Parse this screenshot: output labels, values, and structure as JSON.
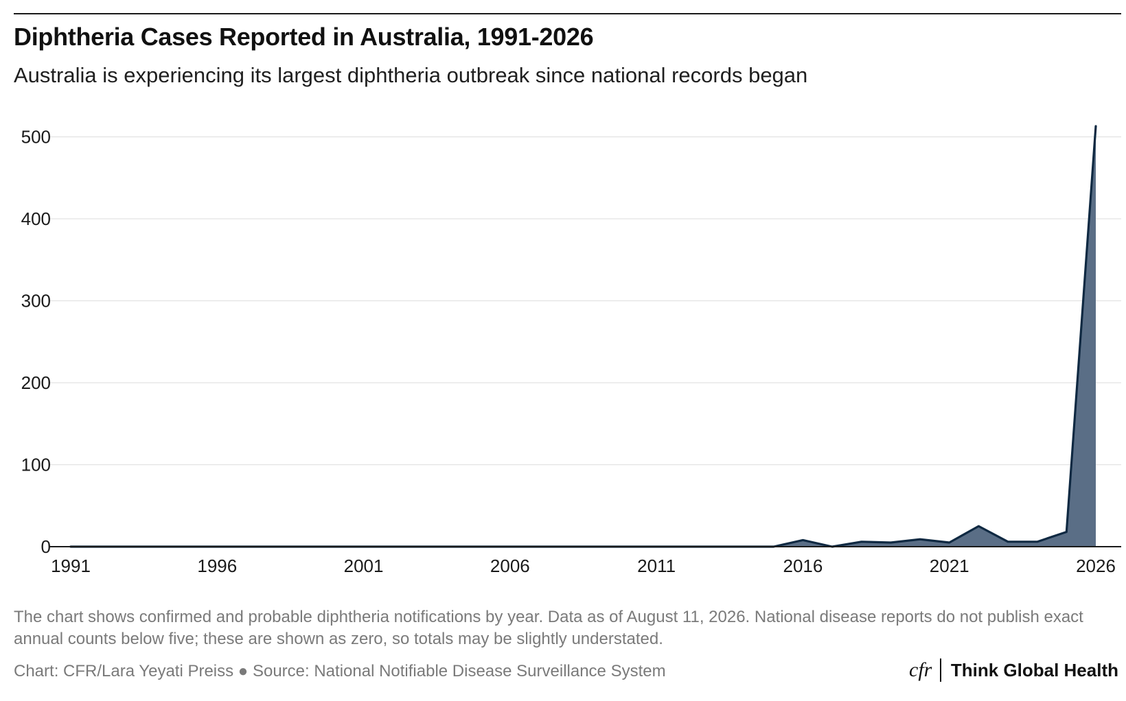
{
  "chart_data": {
    "type": "area",
    "title": "Diphtheria Cases Reported in Australia, 1991-2026",
    "subtitle": "Australia is experiencing its largest diphtheria outbreak since national records began",
    "xlabel": "",
    "ylabel": "",
    "x": [
      1991,
      1992,
      1993,
      1994,
      1995,
      1996,
      1997,
      1998,
      1999,
      2000,
      2001,
      2002,
      2003,
      2004,
      2005,
      2006,
      2007,
      2008,
      2009,
      2010,
      2011,
      2012,
      2013,
      2014,
      2015,
      2016,
      2017,
      2018,
      2019,
      2020,
      2021,
      2022,
      2023,
      2024,
      2025,
      2026
    ],
    "series": [
      {
        "values": [
          0,
          0,
          0,
          0,
          0,
          0,
          0,
          0,
          0,
          0,
          0,
          0,
          0,
          0,
          0,
          0,
          0,
          0,
          0,
          0,
          0,
          0,
          0,
          0,
          0,
          8,
          0,
          6,
          5,
          9,
          5,
          25,
          6,
          6,
          18,
          513
        ]
      }
    ],
    "xticks": [
      "1991",
      "1996",
      "2001",
      "2006",
      "2011",
      "2016",
      "2021",
      "2026"
    ],
    "yticks": [
      "0",
      "100",
      "200",
      "300",
      "400",
      "500"
    ],
    "xlim": [
      1991,
      2026
    ],
    "ylim": [
      0,
      520
    ],
    "grid": true,
    "legend": "none",
    "colors": {
      "line": "#0f2942",
      "fill": "#5a6e86",
      "grid": "#e2e2e2",
      "text": "#1a1a1a",
      "note": "#7a7a7a"
    }
  },
  "footer": {
    "note": "The chart shows confirmed and probable diphtheria notifications by year. Data as of August 11, 2026. National disease reports do not publish exact annual counts below five; these are shown as zero, so totals may be slightly understated.",
    "credit": "Chart: CFR/Lara Yeyati Preiss ● Source: National Notifiable Disease Surveillance System"
  },
  "logo": {
    "cfr": "cfr",
    "name": "Think Global Health"
  }
}
